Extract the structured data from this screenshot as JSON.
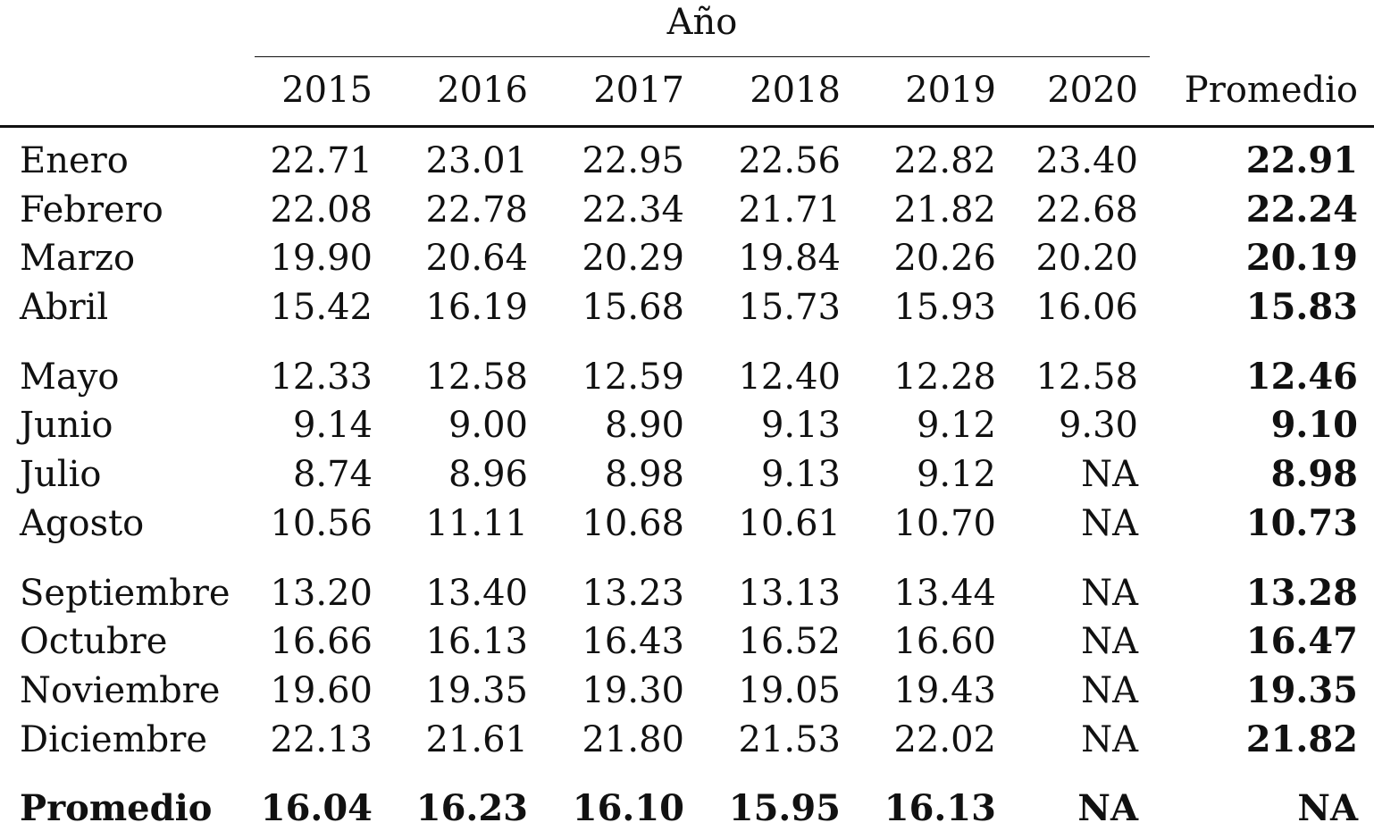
{
  "header": {
    "spanner": "Año",
    "columns": [
      "2015",
      "2016",
      "2017",
      "2018",
      "2019",
      "2020",
      "Promedio"
    ]
  },
  "rows": [
    {
      "label": "Enero",
      "values": [
        "22.71",
        "23.01",
        "22.95",
        "22.56",
        "22.82",
        "23.40"
      ],
      "avg": "22.91"
    },
    {
      "label": "Febrero",
      "values": [
        "22.08",
        "22.78",
        "22.34",
        "21.71",
        "21.82",
        "22.68"
      ],
      "avg": "22.24"
    },
    {
      "label": "Marzo",
      "values": [
        "19.90",
        "20.64",
        "20.29",
        "19.84",
        "20.26",
        "20.20"
      ],
      "avg": "20.19"
    },
    {
      "label": "Abril",
      "values": [
        "15.42",
        "16.19",
        "15.68",
        "15.73",
        "15.93",
        "16.06"
      ],
      "avg": "15.83"
    },
    {
      "label": "Mayo",
      "values": [
        "12.33",
        "12.58",
        "12.59",
        "12.40",
        "12.28",
        "12.58"
      ],
      "avg": "12.46"
    },
    {
      "label": "Junio",
      "values": [
        "9.14",
        "9.00",
        "8.90",
        "9.13",
        "9.12",
        "9.30"
      ],
      "avg": "9.10"
    },
    {
      "label": "Julio",
      "values": [
        "8.74",
        "8.96",
        "8.98",
        "9.13",
        "9.12",
        "NA"
      ],
      "avg": "8.98"
    },
    {
      "label": "Agosto",
      "values": [
        "10.56",
        "11.11",
        "10.68",
        "10.61",
        "10.70",
        "NA"
      ],
      "avg": "10.73"
    },
    {
      "label": "Septiembre",
      "values": [
        "13.20",
        "13.40",
        "13.23",
        "13.13",
        "13.44",
        "NA"
      ],
      "avg": "13.28"
    },
    {
      "label": "Octubre",
      "values": [
        "16.66",
        "16.13",
        "16.43",
        "16.52",
        "16.60",
        "NA"
      ],
      "avg": "16.47"
    },
    {
      "label": "Noviembre",
      "values": [
        "19.60",
        "19.35",
        "19.30",
        "19.05",
        "19.43",
        "NA"
      ],
      "avg": "19.35"
    },
    {
      "label": "Diciembre",
      "values": [
        "22.13",
        "21.61",
        "21.80",
        "21.53",
        "22.02",
        "NA"
      ],
      "avg": "21.82"
    }
  ],
  "footer": {
    "label": "Promedio",
    "values": [
      "16.04",
      "16.23",
      "16.10",
      "15.95",
      "16.13",
      "NA"
    ],
    "avg": "NA"
  }
}
